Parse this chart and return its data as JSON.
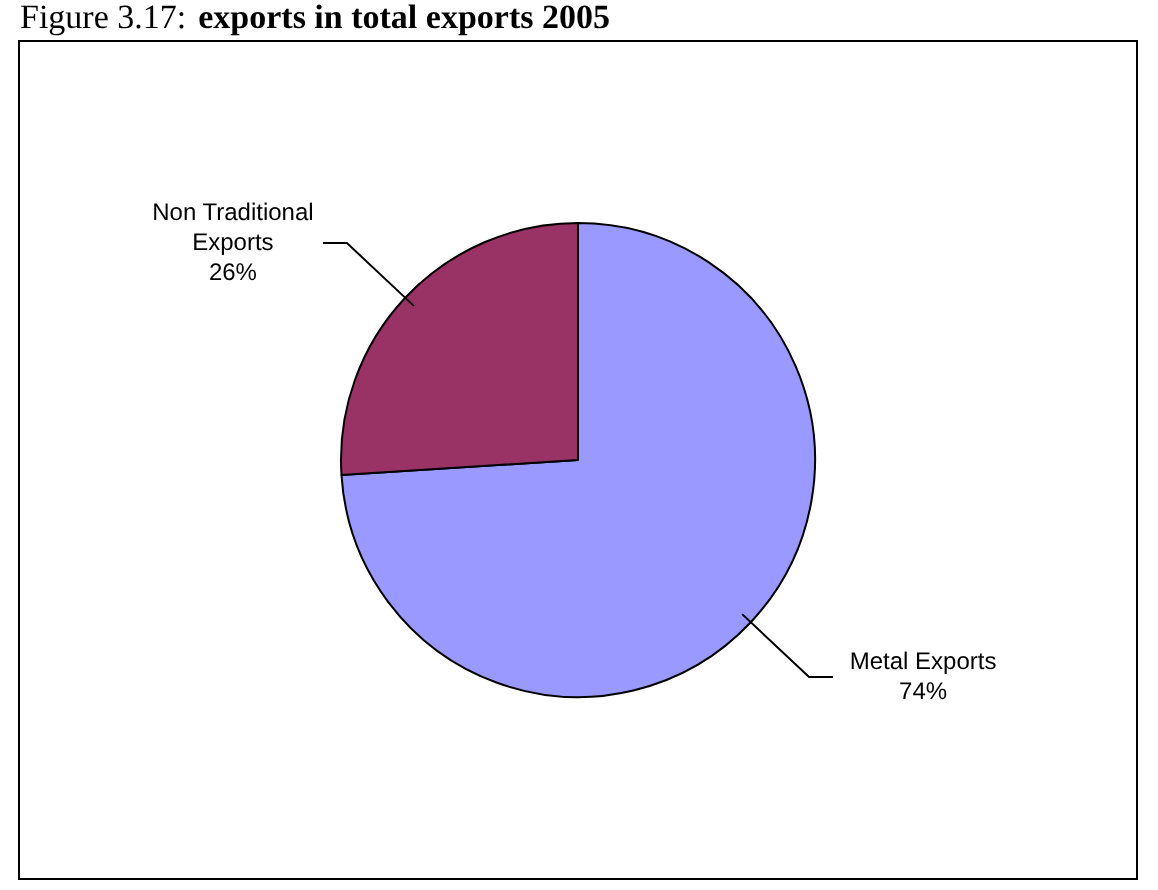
{
  "chart_data": {
    "type": "pie",
    "title": "Figure 3.17:",
    "subtitle": "exports in total exports 2005",
    "categories": [
      "Metal Exports",
      "Non Traditional Exports"
    ],
    "values": [
      74,
      26
    ],
    "colors": [
      "#9999ff",
      "#993366"
    ],
    "value_labels": [
      "74%",
      "26%"
    ],
    "legend": false
  }
}
